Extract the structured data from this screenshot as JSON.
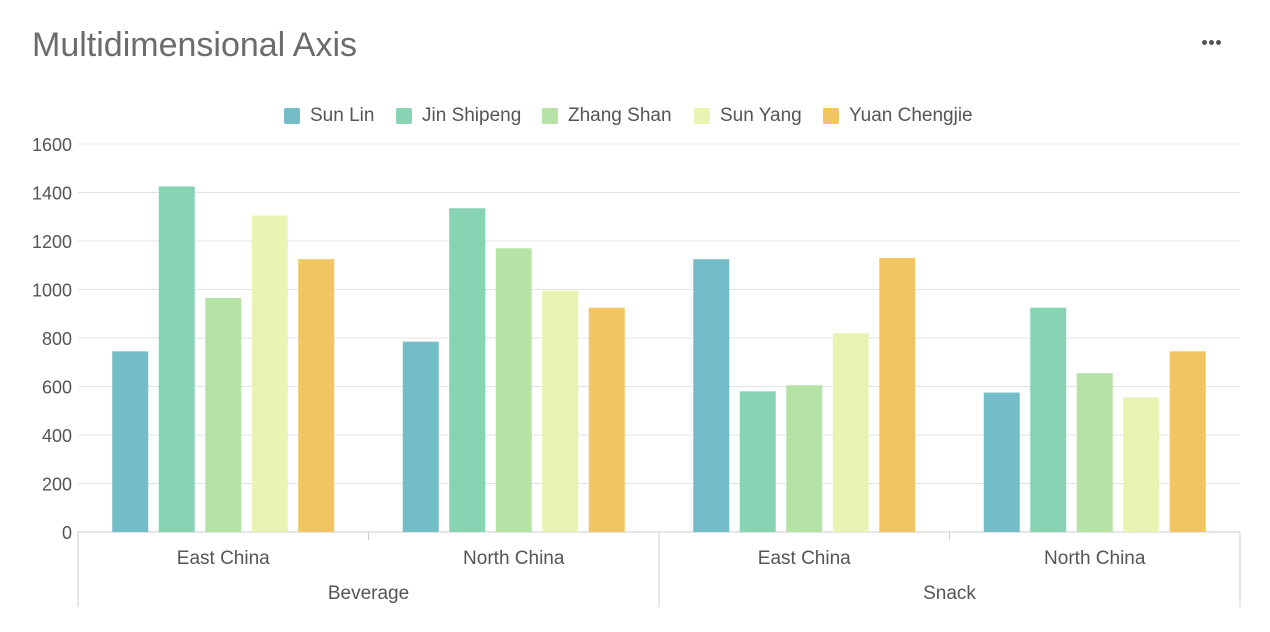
{
  "title": "Multidimensional Axis",
  "toolbar": {
    "more_icon": "more-horizontal-icon"
  },
  "chart_data": {
    "type": "bar",
    "title": "Multidimensional Axis",
    "xlabel": "",
    "ylabel": "",
    "ylim": [
      0,
      1600
    ],
    "yticks": [
      0,
      200,
      400,
      600,
      800,
      1000,
      1200,
      1400,
      1600
    ],
    "grid": true,
    "legend_position": "top",
    "categories": [
      {
        "region": "East China",
        "group": "Beverage"
      },
      {
        "region": "North China",
        "group": "Beverage"
      },
      {
        "region": "East China",
        "group": "Snack"
      },
      {
        "region": "North China",
        "group": "Snack"
      }
    ],
    "groups": [
      "Beverage",
      "Snack"
    ],
    "series": [
      {
        "name": "Sun Lin",
        "color": "#72bdc8",
        "values": [
          745,
          785,
          1125,
          575
        ]
      },
      {
        "name": "Jin Shipeng",
        "color": "#87d3b4",
        "values": [
          1425,
          1335,
          580,
          925
        ]
      },
      {
        "name": "Zhang Shan",
        "color": "#b5e3a5",
        "values": [
          965,
          1170,
          605,
          655
        ]
      },
      {
        "name": "Sun Yang",
        "color": "#e9f4b2",
        "values": [
          1305,
          995,
          820,
          555
        ]
      },
      {
        "name": "Yuan Chengjie",
        "color": "#f0c562",
        "values": [
          1125,
          925,
          1130,
          745
        ]
      }
    ]
  }
}
